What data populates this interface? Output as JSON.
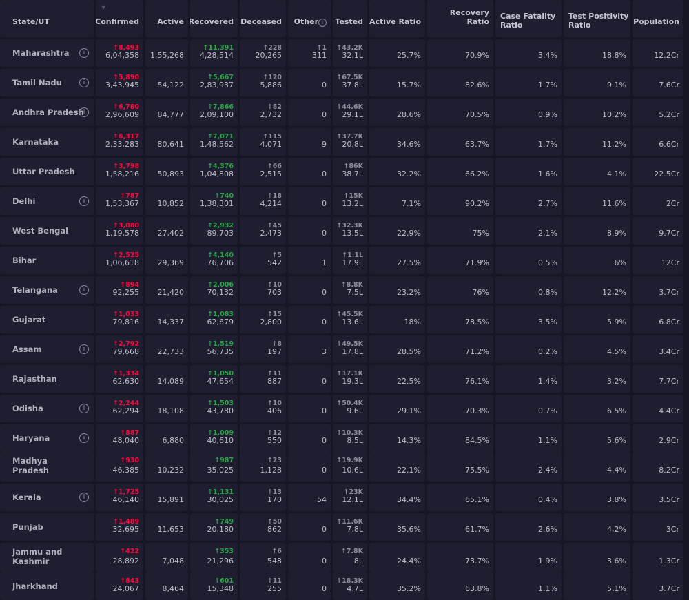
{
  "table": {
    "headers": [
      "State/UT",
      "Confirmed",
      "Active",
      "Recovered",
      "Deceased",
      "Other",
      "Tested",
      "Active Ratio",
      "Recovery Ratio",
      "Case Fatality Ratio",
      "Test Positivity Ratio",
      "Population"
    ],
    "colors": {
      "confirmed_delta": "#ff073a",
      "recovered_delta": "#28a745",
      "neutral_delta": "#8d8d9c",
      "cell_bg": "#1e1e30",
      "page_bg": "#161625"
    },
    "icons": {
      "sort": "sort-icon",
      "info": "info-icon"
    },
    "rows": [
      {
        "state": "Maharashtra",
        "info": "i",
        "confirmed_delta": "↑8,493",
        "confirmed": "6,04,358",
        "active": "1,55,268",
        "recovered_delta": "↑11,391",
        "recovered": "4,28,514",
        "deceased_delta": "↑228",
        "deceased": "20,265",
        "other_delta": "↑1",
        "other": "311",
        "tested_delta": "↑43.2K",
        "tested": "32.1L",
        "active_ratio": "25.7%",
        "recovery_ratio": "70.9%",
        "cfr": "3.4%",
        "tpr": "18.8%",
        "population": "12.2Cr"
      },
      {
        "state": "Tamil Nadu",
        "info": "i",
        "confirmed_delta": "↑5,890",
        "confirmed": "3,43,945",
        "active": "54,122",
        "recovered_delta": "↑5,667",
        "recovered": "2,83,937",
        "deceased_delta": "↑120",
        "deceased": "5,886",
        "other_delta": "",
        "other": "0",
        "tested_delta": "↑67.5K",
        "tested": "37.8L",
        "active_ratio": "15.7%",
        "recovery_ratio": "82.6%",
        "cfr": "1.7%",
        "tpr": "9.1%",
        "population": "7.6Cr"
      },
      {
        "state": "Andhra Pradesh",
        "info": "i",
        "confirmed_delta": "↑6,780",
        "confirmed": "2,96,609",
        "active": "84,777",
        "recovered_delta": "↑7,866",
        "recovered": "2,09,100",
        "deceased_delta": "↑82",
        "deceased": "2,732",
        "other_delta": "",
        "other": "0",
        "tested_delta": "↑44.6K",
        "tested": "29.1L",
        "active_ratio": "28.6%",
        "recovery_ratio": "70.5%",
        "cfr": "0.9%",
        "tpr": "10.2%",
        "population": "5.2Cr"
      },
      {
        "state": "Karnataka",
        "info": "",
        "confirmed_delta": "↑6,317",
        "confirmed": "2,33,283",
        "active": "80,641",
        "recovered_delta": "↑7,071",
        "recovered": "1,48,562",
        "deceased_delta": "↑115",
        "deceased": "4,071",
        "other_delta": "",
        "other": "9",
        "tested_delta": "↑37.7K",
        "tested": "20.8L",
        "active_ratio": "34.6%",
        "recovery_ratio": "63.7%",
        "cfr": "1.7%",
        "tpr": "11.2%",
        "population": "6.6Cr"
      },
      {
        "state": "Uttar Pradesh",
        "info": "",
        "confirmed_delta": "↑3,798",
        "confirmed": "1,58,216",
        "active": "50,893",
        "recovered_delta": "↑4,376",
        "recovered": "1,04,808",
        "deceased_delta": "↑66",
        "deceased": "2,515",
        "other_delta": "",
        "other": "0",
        "tested_delta": "↑86K",
        "tested": "38.7L",
        "active_ratio": "32.2%",
        "recovery_ratio": "66.2%",
        "cfr": "1.6%",
        "tpr": "4.1%",
        "population": "22.5Cr"
      },
      {
        "state": "Delhi",
        "info": "i",
        "confirmed_delta": "↑787",
        "confirmed": "1,53,367",
        "active": "10,852",
        "recovered_delta": "↑740",
        "recovered": "1,38,301",
        "deceased_delta": "↑18",
        "deceased": "4,214",
        "other_delta": "",
        "other": "0",
        "tested_delta": "↑15K",
        "tested": "13.2L",
        "active_ratio": "7.1%",
        "recovery_ratio": "90.2%",
        "cfr": "2.7%",
        "tpr": "11.6%",
        "population": "2Cr"
      },
      {
        "state": "West Bengal",
        "info": "",
        "confirmed_delta": "↑3,080",
        "confirmed": "1,19,578",
        "active": "27,402",
        "recovered_delta": "↑2,932",
        "recovered": "89,703",
        "deceased_delta": "↑45",
        "deceased": "2,473",
        "other_delta": "",
        "other": "0",
        "tested_delta": "↑32.3K",
        "tested": "13.5L",
        "active_ratio": "22.9%",
        "recovery_ratio": "75%",
        "cfr": "2.1%",
        "tpr": "8.9%",
        "population": "9.7Cr"
      },
      {
        "state": "Bihar",
        "info": "",
        "confirmed_delta": "↑2,525",
        "confirmed": "1,06,618",
        "active": "29,369",
        "recovered_delta": "↑4,140",
        "recovered": "76,706",
        "deceased_delta": "↑5",
        "deceased": "542",
        "other_delta": "",
        "other": "1",
        "tested_delta": "↑1.1L",
        "tested": "17.9L",
        "active_ratio": "27.5%",
        "recovery_ratio": "71.9%",
        "cfr": "0.5%",
        "tpr": "6%",
        "population": "12Cr"
      },
      {
        "state": "Telangana",
        "info": "i",
        "confirmed_delta": "↑894",
        "confirmed": "92,255",
        "active": "21,420",
        "recovered_delta": "↑2,006",
        "recovered": "70,132",
        "deceased_delta": "↑10",
        "deceased": "703",
        "other_delta": "",
        "other": "0",
        "tested_delta": "↑8.8K",
        "tested": "7.5L",
        "active_ratio": "23.2%",
        "recovery_ratio": "76%",
        "cfr": "0.8%",
        "tpr": "12.2%",
        "population": "3.7Cr"
      },
      {
        "state": "Gujarat",
        "info": "",
        "confirmed_delta": "↑1,033",
        "confirmed": "79,816",
        "active": "14,337",
        "recovered_delta": "↑1,083",
        "recovered": "62,679",
        "deceased_delta": "↑15",
        "deceased": "2,800",
        "other_delta": "",
        "other": "0",
        "tested_delta": "↑45.5K",
        "tested": "13.6L",
        "active_ratio": "18%",
        "recovery_ratio": "78.5%",
        "cfr": "3.5%",
        "tpr": "5.9%",
        "population": "6.8Cr"
      },
      {
        "state": "Assam",
        "info": "i",
        "confirmed_delta": "↑2,792",
        "confirmed": "79,668",
        "active": "22,733",
        "recovered_delta": "↑1,519",
        "recovered": "56,735",
        "deceased_delta": "↑8",
        "deceased": "197",
        "other_delta": "",
        "other": "3",
        "tested_delta": "↑49.5K",
        "tested": "17.8L",
        "active_ratio": "28.5%",
        "recovery_ratio": "71.2%",
        "cfr": "0.2%",
        "tpr": "4.5%",
        "population": "3.4Cr"
      },
      {
        "state": "Rajasthan",
        "info": "",
        "confirmed_delta": "↑1,334",
        "confirmed": "62,630",
        "active": "14,089",
        "recovered_delta": "↑1,050",
        "recovered": "47,654",
        "deceased_delta": "↑11",
        "deceased": "887",
        "other_delta": "",
        "other": "0",
        "tested_delta": "↑17.1K",
        "tested": "19.3L",
        "active_ratio": "22.5%",
        "recovery_ratio": "76.1%",
        "cfr": "1.4%",
        "tpr": "3.2%",
        "population": "7.7Cr"
      },
      {
        "state": "Odisha",
        "info": "i",
        "confirmed_delta": "↑2,244",
        "confirmed": "62,294",
        "active": "18,108",
        "recovered_delta": "↑1,503",
        "recovered": "43,780",
        "deceased_delta": "↑10",
        "deceased": "406",
        "other_delta": "",
        "other": "0",
        "tested_delta": "↑50.4K",
        "tested": "9.6L",
        "active_ratio": "29.1%",
        "recovery_ratio": "70.3%",
        "cfr": "0.7%",
        "tpr": "6.5%",
        "population": "4.4Cr"
      },
      {
        "state": "Haryana",
        "info": "i",
        "confirmed_delta": "↑887",
        "confirmed": "48,040",
        "active": "6,880",
        "recovered_delta": "↑1,009",
        "recovered": "40,610",
        "deceased_delta": "↑12",
        "deceased": "550",
        "other_delta": "",
        "other": "0",
        "tested_delta": "↑10.3K",
        "tested": "8.5L",
        "active_ratio": "14.3%",
        "recovery_ratio": "84.5%",
        "cfr": "1.1%",
        "tpr": "5.6%",
        "population": "2.9Cr"
      },
      {
        "state": "Madhya Pradesh",
        "info": "",
        "confirmed_delta": "↑930",
        "confirmed": "46,385",
        "active": "10,232",
        "recovered_delta": "↑987",
        "recovered": "35,025",
        "deceased_delta": "↑23",
        "deceased": "1,128",
        "other_delta": "",
        "other": "0",
        "tested_delta": "↑19.9K",
        "tested": "10.6L",
        "active_ratio": "22.1%",
        "recovery_ratio": "75.5%",
        "cfr": "2.4%",
        "tpr": "4.4%",
        "population": "8.2Cr"
      },
      {
        "state": "Kerala",
        "info": "i",
        "confirmed_delta": "↑1,725",
        "confirmed": "46,140",
        "active": "15,891",
        "recovered_delta": "↑1,131",
        "recovered": "30,025",
        "deceased_delta": "↑13",
        "deceased": "170",
        "other_delta": "",
        "other": "54",
        "tested_delta": "↑23K",
        "tested": "12.1L",
        "active_ratio": "34.4%",
        "recovery_ratio": "65.1%",
        "cfr": "0.4%",
        "tpr": "3.8%",
        "population": "3.5Cr"
      },
      {
        "state": "Punjab",
        "info": "",
        "confirmed_delta": "↑1,489",
        "confirmed": "32,695",
        "active": "11,653",
        "recovered_delta": "↑749",
        "recovered": "20,180",
        "deceased_delta": "↑50",
        "deceased": "862",
        "other_delta": "",
        "other": "0",
        "tested_delta": "↑11.6K",
        "tested": "7.8L",
        "active_ratio": "35.6%",
        "recovery_ratio": "61.7%",
        "cfr": "2.6%",
        "tpr": "4.2%",
        "population": "3Cr"
      },
      {
        "state": "Jammu and Kashmir",
        "info": "",
        "confirmed_delta": "↑422",
        "confirmed": "28,892",
        "active": "7,048",
        "recovered_delta": "↑353",
        "recovered": "21,296",
        "deceased_delta": "↑6",
        "deceased": "548",
        "other_delta": "",
        "other": "0",
        "tested_delta": "↑7.8K",
        "tested": "8L",
        "active_ratio": "24.4%",
        "recovery_ratio": "73.7%",
        "cfr": "1.9%",
        "tpr": "3.6%",
        "population": "1.3Cr"
      },
      {
        "state": "Jharkhand",
        "info": "",
        "confirmed_delta": "↑843",
        "confirmed": "24,067",
        "active": "8,464",
        "recovered_delta": "↑601",
        "recovered": "15,348",
        "deceased_delta": "↑11",
        "deceased": "255",
        "other_delta": "",
        "other": "0",
        "tested_delta": "↑18.3K",
        "tested": "4.7L",
        "active_ratio": "35.2%",
        "recovery_ratio": "63.8%",
        "cfr": "1.1%",
        "tpr": "5.1%",
        "population": "3.7Cr"
      }
    ]
  }
}
